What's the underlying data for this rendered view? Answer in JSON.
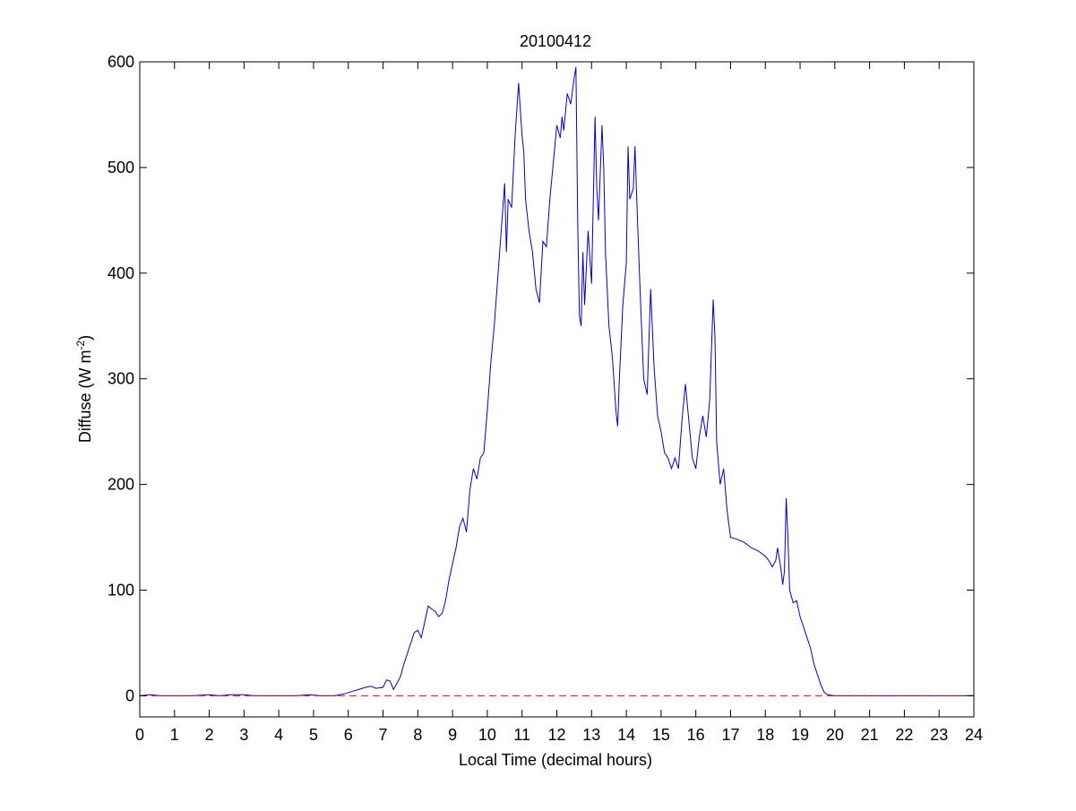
{
  "chart_data": {
    "type": "line",
    "title": "20100412",
    "xlabel": "Local Time (decimal hours)",
    "ylabel_main": "Diffuse (W m",
    "ylabel_exp": "-2",
    "ylabel_close": ")",
    "xlim": [
      0,
      24
    ],
    "ylim": [
      -20,
      600
    ],
    "xticks": [
      0,
      1,
      2,
      3,
      4,
      5,
      6,
      7,
      8,
      9,
      10,
      11,
      12,
      13,
      14,
      15,
      16,
      17,
      18,
      19,
      20,
      21,
      22,
      23,
      24
    ],
    "xtick_labels": [
      "0",
      "1",
      "2",
      "3",
      "4",
      "5",
      "6",
      "7",
      "8",
      "9",
      "10",
      "11",
      "12",
      "13",
      "14",
      "15",
      "16",
      "17",
      "18",
      "19",
      "20",
      "21",
      "22",
      "23",
      "24"
    ],
    "yticks": [
      0,
      100,
      200,
      300,
      400,
      500,
      600
    ],
    "ytick_labels": [
      "0",
      "100",
      "200",
      "300",
      "400",
      "500",
      "600"
    ],
    "grid": false,
    "series": [
      {
        "color": "#0000cc",
        "style": "solid",
        "points": [
          [
            0,
            0
          ],
          [
            0.3,
            1
          ],
          [
            0.6,
            0
          ],
          [
            1,
            0
          ],
          [
            1.5,
            0
          ],
          [
            2,
            1
          ],
          [
            2.3,
            0
          ],
          [
            2.6,
            1
          ],
          [
            3,
            1
          ],
          [
            3.3,
            0
          ],
          [
            4,
            0
          ],
          [
            4.5,
            0
          ],
          [
            4.9,
            1
          ],
          [
            5.2,
            0
          ],
          [
            5.6,
            0
          ],
          [
            5.9,
            2
          ],
          [
            6.1,
            4
          ],
          [
            6.3,
            6
          ],
          [
            6.5,
            8
          ],
          [
            6.65,
            9
          ],
          [
            6.8,
            7
          ],
          [
            7.0,
            8
          ],
          [
            7.1,
            15
          ],
          [
            7.2,
            14
          ],
          [
            7.3,
            6
          ],
          [
            7.4,
            12
          ],
          [
            7.5,
            18
          ],
          [
            7.6,
            30
          ],
          [
            7.75,
            45
          ],
          [
            7.9,
            60
          ],
          [
            8.0,
            62
          ],
          [
            8.1,
            55
          ],
          [
            8.2,
            70
          ],
          [
            8.3,
            85
          ],
          [
            8.4,
            82
          ],
          [
            8.5,
            80
          ],
          [
            8.6,
            75
          ],
          [
            8.7,
            78
          ],
          [
            8.8,
            90
          ],
          [
            8.9,
            110
          ],
          [
            9.0,
            125
          ],
          [
            9.1,
            140
          ],
          [
            9.2,
            160
          ],
          [
            9.3,
            168
          ],
          [
            9.4,
            155
          ],
          [
            9.5,
            195
          ],
          [
            9.6,
            215
          ],
          [
            9.7,
            205
          ],
          [
            9.8,
            225
          ],
          [
            9.9,
            230
          ],
          [
            10.0,
            270
          ],
          [
            10.1,
            315
          ],
          [
            10.2,
            350
          ],
          [
            10.3,
            395
          ],
          [
            10.4,
            440
          ],
          [
            10.5,
            485
          ],
          [
            10.55,
            420
          ],
          [
            10.6,
            470
          ],
          [
            10.7,
            462
          ],
          [
            10.8,
            530
          ],
          [
            10.9,
            580
          ],
          [
            11.0,
            530
          ],
          [
            11.05,
            515
          ],
          [
            11.1,
            470
          ],
          [
            11.2,
            440
          ],
          [
            11.3,
            420
          ],
          [
            11.4,
            385
          ],
          [
            11.5,
            372
          ],
          [
            11.6,
            430
          ],
          [
            11.7,
            425
          ],
          [
            11.8,
            470
          ],
          [
            11.9,
            505
          ],
          [
            12.0,
            540
          ],
          [
            12.1,
            528
          ],
          [
            12.15,
            548
          ],
          [
            12.2,
            535
          ],
          [
            12.3,
            570
          ],
          [
            12.4,
            560
          ],
          [
            12.5,
            585
          ],
          [
            12.55,
            595
          ],
          [
            12.6,
            450
          ],
          [
            12.65,
            360
          ],
          [
            12.7,
            350
          ],
          [
            12.75,
            420
          ],
          [
            12.8,
            370
          ],
          [
            12.9,
            440
          ],
          [
            13.0,
            390
          ],
          [
            13.1,
            548
          ],
          [
            13.15,
            480
          ],
          [
            13.2,
            450
          ],
          [
            13.3,
            540
          ],
          [
            13.35,
            500
          ],
          [
            13.4,
            420
          ],
          [
            13.5,
            350
          ],
          [
            13.6,
            320
          ],
          [
            13.7,
            270
          ],
          [
            13.75,
            255
          ],
          [
            13.8,
            300
          ],
          [
            13.9,
            370
          ],
          [
            14.0,
            410
          ],
          [
            14.05,
            520
          ],
          [
            14.1,
            470
          ],
          [
            14.2,
            480
          ],
          [
            14.25,
            520
          ],
          [
            14.3,
            470
          ],
          [
            14.4,
            380
          ],
          [
            14.5,
            300
          ],
          [
            14.6,
            285
          ],
          [
            14.7,
            385
          ],
          [
            14.8,
            310
          ],
          [
            14.9,
            265
          ],
          [
            15.0,
            250
          ],
          [
            15.1,
            230
          ],
          [
            15.2,
            225
          ],
          [
            15.3,
            215
          ],
          [
            15.4,
            225
          ],
          [
            15.5,
            215
          ],
          [
            15.6,
            260
          ],
          [
            15.7,
            295
          ],
          [
            15.8,
            260
          ],
          [
            15.9,
            225
          ],
          [
            16.0,
            215
          ],
          [
            16.1,
            245
          ],
          [
            16.2,
            265
          ],
          [
            16.3,
            245
          ],
          [
            16.4,
            280
          ],
          [
            16.5,
            375
          ],
          [
            16.55,
            340
          ],
          [
            16.6,
            240
          ],
          [
            16.7,
            200
          ],
          [
            16.8,
            215
          ],
          [
            16.9,
            175
          ],
          [
            17.0,
            150
          ],
          [
            17.2,
            148
          ],
          [
            17.4,
            145
          ],
          [
            17.6,
            140
          ],
          [
            17.8,
            137
          ],
          [
            18.0,
            132
          ],
          [
            18.1,
            128
          ],
          [
            18.2,
            122
          ],
          [
            18.3,
            128
          ],
          [
            18.35,
            140
          ],
          [
            18.45,
            120
          ],
          [
            18.5,
            105
          ],
          [
            18.55,
            118
          ],
          [
            18.6,
            187
          ],
          [
            18.65,
            150
          ],
          [
            18.7,
            100
          ],
          [
            18.8,
            88
          ],
          [
            18.9,
            90
          ],
          [
            19.0,
            75
          ],
          [
            19.1,
            65
          ],
          [
            19.2,
            55
          ],
          [
            19.3,
            45
          ],
          [
            19.4,
            30
          ],
          [
            19.5,
            20
          ],
          [
            19.6,
            10
          ],
          [
            19.7,
            3
          ],
          [
            19.8,
            1
          ],
          [
            20.0,
            0
          ],
          [
            21,
            0
          ],
          [
            22,
            0
          ],
          [
            23,
            0
          ],
          [
            24,
            0
          ]
        ]
      },
      {
        "color": "#ff0000",
        "style": "dashed",
        "points": [
          [
            0,
            0
          ],
          [
            24,
            0
          ]
        ]
      }
    ]
  }
}
